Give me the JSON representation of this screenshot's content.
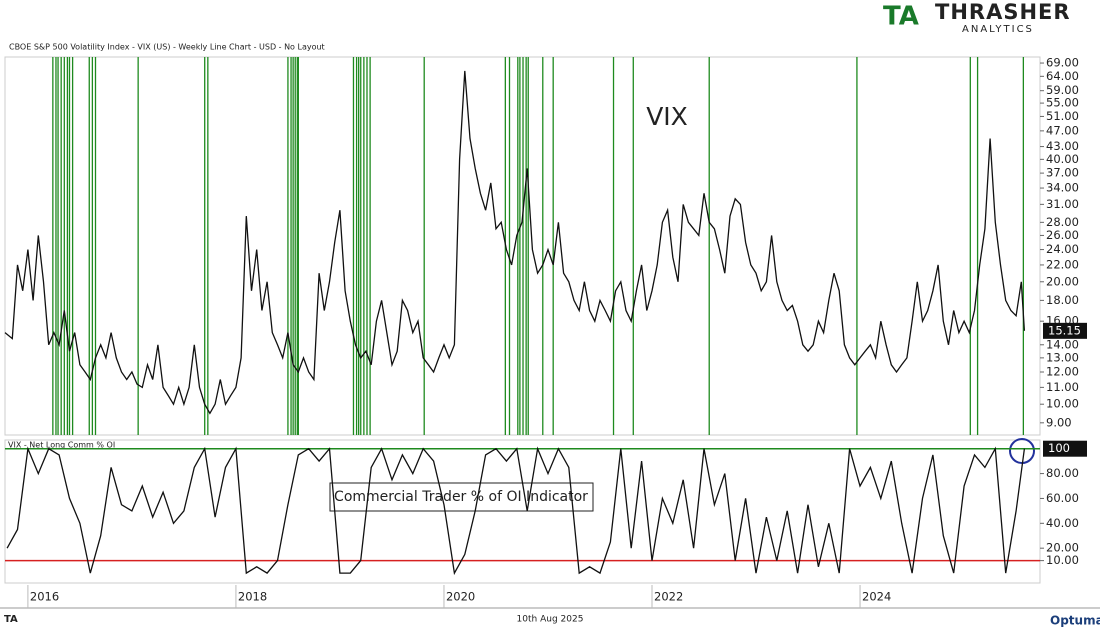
{
  "logo": {
    "name": "THRASHER",
    "tagline": "ANALYTICS",
    "mark": "TA"
  },
  "footer": {
    "date": "10th Aug 2025",
    "brand": "Optuma",
    "mark": "TA"
  },
  "chart_data": [
    {
      "type": "line",
      "title": "CBOE S&P 500 Volatility Index - VIX (US) - Weekly Line Chart - USD - No Layout",
      "annotation": "VIX",
      "log_scale": true,
      "color": "#111111",
      "signal_color": "#1e8a1e",
      "xlim": [
        2015.78,
        2025.73
      ],
      "ylim": [
        8.4,
        71.4
      ],
      "yticks": [
        {
          "value": 9,
          "label": "9.00"
        },
        {
          "value": 10,
          "label": "10.00"
        },
        {
          "value": 11,
          "label": "11.00"
        },
        {
          "value": 12,
          "label": "12.00"
        },
        {
          "value": 13,
          "label": "13.00"
        },
        {
          "value": 14,
          "label": "14.00"
        },
        {
          "value": 16,
          "label": "16.00"
        },
        {
          "value": 18,
          "label": "18.00"
        },
        {
          "value": 20,
          "label": "20.00"
        },
        {
          "value": 22,
          "label": "22.00"
        },
        {
          "value": 24,
          "label": "24.00"
        },
        {
          "value": 26,
          "label": "26.00"
        },
        {
          "value": 28,
          "label": "28.00"
        },
        {
          "value": 31,
          "label": "31.00"
        },
        {
          "value": 34,
          "label": "34.00"
        },
        {
          "value": 37,
          "label": "37.00"
        },
        {
          "value": 40,
          "label": "40.00"
        },
        {
          "value": 43,
          "label": "43.00"
        },
        {
          "value": 47,
          "label": "47.00"
        },
        {
          "value": 51,
          "label": "51.00"
        },
        {
          "value": 55,
          "label": "55.00"
        },
        {
          "value": 59,
          "label": "59.00"
        },
        {
          "value": 64,
          "label": "64.00"
        },
        {
          "value": 69,
          "label": "69.00"
        }
      ],
      "signals": [
        2016.24,
        2016.27,
        2016.29,
        2016.32,
        2016.35,
        2016.38,
        2016.4,
        2016.43,
        2016.59,
        2016.62,
        2016.65,
        2017.06,
        2017.7,
        2017.73,
        2018.5,
        2018.53,
        2018.55,
        2018.57,
        2018.59,
        2018.6,
        2019.13,
        2019.16,
        2019.18,
        2019.2,
        2019.23,
        2019.26,
        2019.29,
        2019.81,
        2020.59,
        2020.63,
        2020.71,
        2020.73,
        2020.76,
        2020.79,
        2020.81,
        2020.95,
        2021.05,
        2021.63,
        2021.82,
        2022.55,
        2023.97,
        2025.06,
        2025.13,
        2025.57
      ],
      "x": [
        2015.78,
        2015.85,
        2015.9,
        2015.95,
        2016.0,
        2016.05,
        2016.1,
        2016.15,
        2016.2,
        2016.25,
        2016.3,
        2016.35,
        2016.4,
        2016.45,
        2016.5,
        2016.55,
        2016.6,
        2016.65,
        2016.7,
        2016.75,
        2016.8,
        2016.85,
        2016.9,
        2016.95,
        2017.0,
        2017.05,
        2017.1,
        2017.15,
        2017.2,
        2017.25,
        2017.3,
        2017.35,
        2017.4,
        2017.45,
        2017.5,
        2017.55,
        2017.6,
        2017.65,
        2017.7,
        2017.75,
        2017.8,
        2017.85,
        2017.9,
        2017.95,
        2018.0,
        2018.05,
        2018.1,
        2018.15,
        2018.2,
        2018.25,
        2018.3,
        2018.35,
        2018.4,
        2018.45,
        2018.5,
        2018.55,
        2018.6,
        2018.65,
        2018.7,
        2018.75,
        2018.8,
        2018.85,
        2018.9,
        2018.95,
        2019.0,
        2019.05,
        2019.1,
        2019.15,
        2019.2,
        2019.25,
        2019.3,
        2019.35,
        2019.4,
        2019.45,
        2019.5,
        2019.55,
        2019.6,
        2019.65,
        2019.7,
        2019.75,
        2019.8,
        2019.85,
        2019.9,
        2019.95,
        2020.0,
        2020.05,
        2020.1,
        2020.15,
        2020.2,
        2020.25,
        2020.3,
        2020.35,
        2020.4,
        2020.45,
        2020.5,
        2020.55,
        2020.6,
        2020.65,
        2020.7,
        2020.75,
        2020.8,
        2020.85,
        2020.9,
        2020.95,
        2021.0,
        2021.05,
        2021.1,
        2021.15,
        2021.2,
        2021.25,
        2021.3,
        2021.35,
        2021.4,
        2021.45,
        2021.5,
        2021.55,
        2021.6,
        2021.65,
        2021.7,
        2021.75,
        2021.8,
        2021.85,
        2021.9,
        2021.95,
        2022.0,
        2022.05,
        2022.1,
        2022.15,
        2022.2,
        2022.25,
        2022.3,
        2022.35,
        2022.4,
        2022.45,
        2022.5,
        2022.55,
        2022.6,
        2022.65,
        2022.7,
        2022.75,
        2022.8,
        2022.85,
        2022.9,
        2022.95,
        2023.0,
        2023.05,
        2023.1,
        2023.15,
        2023.2,
        2023.25,
        2023.3,
        2023.35,
        2023.4,
        2023.45,
        2023.5,
        2023.55,
        2023.6,
        2023.65,
        2023.7,
        2023.75,
        2023.8,
        2023.85,
        2023.9,
        2023.95,
        2024.0,
        2024.05,
        2024.1,
        2024.15,
        2024.2,
        2024.25,
        2024.3,
        2024.35,
        2024.4,
        2024.45,
        2024.5,
        2024.55,
        2024.6,
        2024.65,
        2024.7,
        2024.75,
        2024.8,
        2024.85,
        2024.9,
        2024.95,
        2025.0,
        2025.05,
        2025.1,
        2025.15,
        2025.2,
        2025.25,
        2025.3,
        2025.35,
        2025.4,
        2025.45,
        2025.5,
        2025.55,
        2025.58
      ],
      "values": [
        15,
        14.5,
        22,
        19,
        24,
        18,
        26,
        20,
        14,
        15,
        14,
        17,
        13.5,
        15,
        12.5,
        12,
        11.5,
        13,
        14,
        13,
        15,
        13,
        12,
        11.5,
        12,
        11.2,
        11,
        12.5,
        11.5,
        14,
        11,
        10.5,
        10,
        11,
        10,
        11,
        14,
        11,
        10,
        9.5,
        10,
        11.5,
        10,
        10.5,
        11,
        13,
        29,
        19,
        24,
        17,
        20,
        15,
        14,
        13,
        15,
        12.5,
        12,
        13,
        12,
        11.5,
        21,
        17,
        20,
        25,
        30,
        19,
        16,
        14,
        13,
        13.5,
        12.5,
        16,
        18,
        15,
        12.5,
        13.5,
        18,
        17,
        15,
        16,
        13,
        12.5,
        12,
        13,
        14,
        13,
        14,
        40,
        66,
        45,
        38,
        33,
        30,
        35,
        27,
        28,
        24,
        22,
        26,
        28,
        38,
        24,
        21,
        22,
        24,
        22,
        28,
        21,
        20,
        18,
        17,
        20,
        17,
        16,
        18,
        17,
        16,
        19,
        20,
        17,
        16,
        19,
        22,
        17,
        19,
        22,
        28,
        30,
        23,
        20,
        31,
        28,
        27,
        26,
        33,
        28,
        27,
        24,
        21,
        29,
        32,
        31,
        25,
        22,
        21,
        19,
        20,
        26,
        20,
        18,
        17,
        17.5,
        16,
        14,
        13.5,
        14,
        16,
        15,
        18,
        21,
        19,
        14,
        13,
        12.5,
        13,
        13.5,
        14,
        13,
        16,
        14,
        12.5,
        12,
        12.5,
        13,
        16,
        20,
        16,
        17,
        19,
        22,
        16,
        14,
        17,
        15,
        16,
        15,
        17,
        22,
        27,
        45,
        28,
        22,
        18,
        17,
        16.5,
        20,
        15.15
      ]
    },
    {
      "type": "line",
      "title": "VIX - Net Long Comm % OI",
      "annotation": "Commercial Trader % of OI Indicator",
      "color": "#111111",
      "xlim": [
        2015.78,
        2025.73
      ],
      "ylim": [
        -8,
        107
      ],
      "levels": [
        {
          "value": 10,
          "color": "#d62020"
        },
        {
          "value": 100,
          "color": "#1e8a1e"
        }
      ],
      "yticks": [
        {
          "value": 10,
          "label": "10.00"
        },
        {
          "value": 20,
          "label": "20.00"
        },
        {
          "value": 40,
          "label": "40.00"
        },
        {
          "value": 60,
          "label": "60.00"
        },
        {
          "value": 80,
          "label": "80.00"
        }
      ],
      "xticks": [
        2016,
        2018,
        2020,
        2022,
        2024
      ],
      "x": [
        2015.8,
        2015.9,
        2016.0,
        2016.1,
        2016.2,
        2016.3,
        2016.4,
        2016.5,
        2016.6,
        2016.7,
        2016.8,
        2016.9,
        2017.0,
        2017.1,
        2017.2,
        2017.3,
        2017.4,
        2017.5,
        2017.6,
        2017.7,
        2017.8,
        2017.9,
        2018.0,
        2018.1,
        2018.2,
        2018.3,
        2018.4,
        2018.5,
        2018.6,
        2018.7,
        2018.8,
        2018.9,
        2019.0,
        2019.1,
        2019.2,
        2019.3,
        2019.4,
        2019.5,
        2019.6,
        2019.7,
        2019.8,
        2019.9,
        2020.0,
        2020.1,
        2020.2,
        2020.3,
        2020.4,
        2020.5,
        2020.6,
        2020.7,
        2020.8,
        2020.9,
        2021.0,
        2021.1,
        2021.2,
        2021.3,
        2021.4,
        2021.5,
        2021.6,
        2021.7,
        2021.8,
        2021.9,
        2022.0,
        2022.1,
        2022.2,
        2022.3,
        2022.4,
        2022.5,
        2022.6,
        2022.7,
        2022.8,
        2022.9,
        2023.0,
        2023.1,
        2023.2,
        2023.3,
        2023.4,
        2023.5,
        2023.6,
        2023.7,
        2023.8,
        2023.9,
        2024.0,
        2024.1,
        2024.2,
        2024.3,
        2024.4,
        2024.5,
        2024.6,
        2024.7,
        2024.8,
        2024.9,
        2025.0,
        2025.1,
        2025.2,
        2025.3,
        2025.4,
        2025.5,
        2025.58
      ],
      "values": [
        20,
        35,
        100,
        80,
        100,
        95,
        60,
        40,
        0,
        30,
        85,
        55,
        50,
        70,
        45,
        65,
        40,
        50,
        85,
        100,
        45,
        85,
        100,
        0,
        5,
        0,
        10,
        55,
        95,
        100,
        90,
        100,
        0,
        0,
        10,
        85,
        100,
        75,
        95,
        80,
        100,
        90,
        55,
        0,
        15,
        50,
        95,
        100,
        90,
        100,
        50,
        100,
        80,
        100,
        85,
        0,
        5,
        0,
        25,
        100,
        20,
        90,
        10,
        60,
        40,
        75,
        20,
        100,
        55,
        80,
        10,
        60,
        0,
        45,
        10,
        50,
        0,
        55,
        5,
        40,
        0,
        100,
        70,
        85,
        60,
        90,
        40,
        0,
        60,
        95,
        30,
        0,
        70,
        95,
        85,
        100,
        0,
        50,
        100
      ]
    }
  ]
}
